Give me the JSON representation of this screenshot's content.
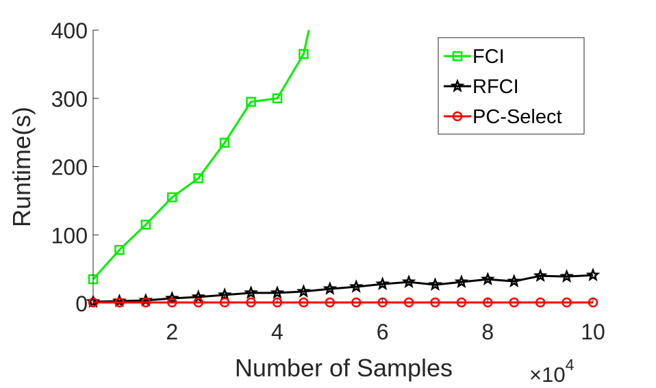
{
  "chart_data": {
    "type": "line",
    "xlabel": "Number of Samples",
    "ylabel": "Runtime(s)",
    "x_exponent_label": "×10",
    "x_exponent_power": "4",
    "xlim": [
      0.5,
      10
    ],
    "ylim": [
      0,
      400
    ],
    "xticks": [
      2,
      4,
      6,
      8,
      10
    ],
    "yticks": [
      0,
      100,
      200,
      300,
      400
    ],
    "xtick_labels": [
      "2",
      "4",
      "6",
      "8",
      "10"
    ],
    "ytick_labels": [
      "0",
      "100",
      "200",
      "300",
      "400"
    ],
    "legend_position": "top-right",
    "series": [
      {
        "name": "FCI",
        "color": "#00ee00",
        "marker": "square",
        "x": [
          0.5,
          1,
          1.5,
          2,
          2.5,
          3,
          3.5,
          4,
          4.5,
          4.6
        ],
        "y": [
          35,
          78,
          115,
          155,
          183,
          235,
          295,
          300,
          365,
          400
        ],
        "marker_count": 9
      },
      {
        "name": "RFCI",
        "color": "#000000",
        "marker": "star",
        "x": [
          0.5,
          1,
          1.5,
          2,
          2.5,
          3,
          3.5,
          4,
          4.5,
          5,
          5.5,
          6,
          6.5,
          7,
          7.5,
          8,
          8.5,
          9,
          9.5,
          10
        ],
        "y": [
          2,
          3,
          4,
          7,
          9,
          12,
          15,
          15,
          17,
          21,
          24,
          28,
          31,
          27,
          31,
          35,
          32,
          40,
          39,
          41
        ],
        "marker_count": 20
      },
      {
        "name": "PC-Select",
        "color": "#ff0000",
        "marker": "circle",
        "x": [
          0.5,
          1,
          1.5,
          2,
          2.5,
          3,
          3.5,
          4,
          4.5,
          5,
          5.5,
          6,
          6.5,
          7,
          7.5,
          8,
          8.5,
          9,
          9.5,
          10
        ],
        "y": [
          1,
          1,
          1,
          1,
          1,
          1,
          1,
          1,
          1,
          1,
          1,
          1,
          1,
          1,
          1,
          1,
          1,
          1,
          1,
          1
        ],
        "marker_count": 20
      }
    ]
  }
}
